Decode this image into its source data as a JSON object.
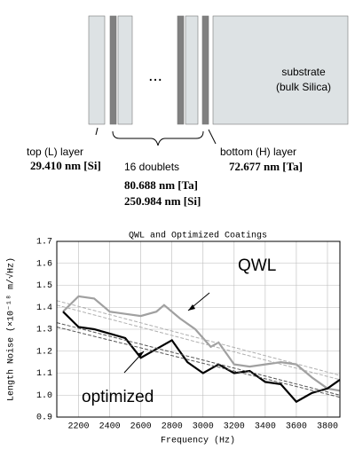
{
  "diagram": {
    "dots": "...",
    "top_label": "top (L) layer",
    "top_value": "29.410 nm [Si]",
    "doublets_label": "16 doublets",
    "doublets_value_1": "80.688 nm [Ta]",
    "doublets_value_2": "250.984 nm [Si]",
    "bottom_label": "bottom (H) layer",
    "bottom_value": "72.677 nm [Ta]",
    "substrate_line_1": "substrate",
    "substrate_line_2": "(bulk Silica)"
  },
  "chart_data": {
    "type": "line",
    "title": "QWL and Optimized Coatings",
    "x_label": "Frequency (Hz)",
    "y_label": "Length Noise (×10⁻¹⁸ m/√Hz)",
    "annotations": [
      "QWL",
      "optimized"
    ],
    "xlim": [
      2060,
      3880
    ],
    "xticks": [
      2200,
      2400,
      2600,
      2800,
      3000,
      3200,
      3400,
      3600,
      3800
    ],
    "ylim": [
      0.9,
      1.7
    ],
    "yticks": [
      0.9,
      {
        "value": 1,
        "label": "1.0"
      },
      1.1,
      1.2,
      1.3,
      1.4,
      1.5,
      1.6,
      1.7
    ],
    "grid": true,
    "series": [
      {
        "color": "#a0a0a0",
        "width": 2.2,
        "x": [
          2100,
          2200,
          2300,
          2400,
          2500,
          2600,
          2700,
          2750,
          2850,
          2950,
          3050,
          3100,
          3200,
          3300,
          3400,
          3500,
          3600,
          3700,
          3800,
          3880
        ],
        "values": [
          1.38,
          1.45,
          1.44,
          1.38,
          1.37,
          1.36,
          1.38,
          1.41,
          1.35,
          1.3,
          1.22,
          1.24,
          1.14,
          1.13,
          1.14,
          1.15,
          1.14,
          1.08,
          1.03,
          1.02
        ]
      },
      {
        "color": "#000000",
        "width": 2.2,
        "x": [
          2100,
          2200,
          2300,
          2400,
          2500,
          2600,
          2700,
          2800,
          2900,
          3000,
          3100,
          3200,
          3300,
          3400,
          3500,
          3600,
          3700,
          3800,
          3880
        ],
        "values": [
          1.38,
          1.31,
          1.3,
          1.28,
          1.26,
          1.17,
          1.21,
          1.25,
          1.15,
          1.1,
          1.14,
          1.1,
          1.11,
          1.06,
          1.05,
          0.97,
          1.01,
          1.03,
          1.07
        ]
      },
      {
        "color": "#b0b0b0",
        "width": 1,
        "dash": true,
        "x": [
          2060,
          3880
        ],
        "values": [
          1.43,
          1.09
        ]
      },
      {
        "color": "#b0b0b0",
        "width": 1,
        "dash": true,
        "x": [
          2060,
          3880
        ],
        "values": [
          1.41,
          1.07
        ]
      },
      {
        "color": "#555555",
        "width": 1,
        "dash": true,
        "x": [
          2060,
          3880
        ],
        "values": [
          1.33,
          1.0
        ]
      },
      {
        "color": "#555555",
        "width": 1,
        "dash": true,
        "x": [
          2060,
          3880
        ],
        "values": [
          1.31,
          0.99
        ]
      }
    ]
  }
}
